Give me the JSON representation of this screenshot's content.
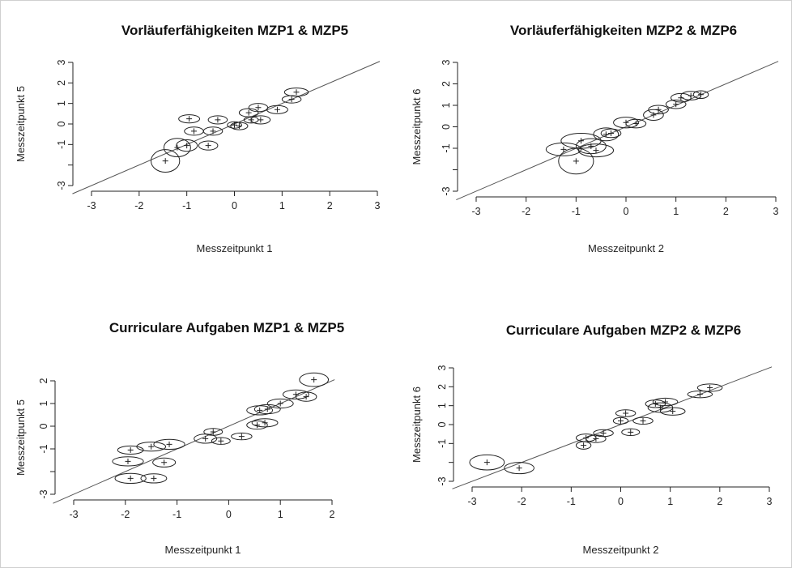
{
  "chart_data": [
    {
      "type": "scatter",
      "title": "Vorläuferfähigkeiten MZP1 & MZP5",
      "xlabel": "Messzeitpunkt 1",
      "ylabel": "Messzeitpunkt 5",
      "xlim": [
        -3,
        3
      ],
      "ylim": [
        -3,
        3
      ],
      "xticks": [
        "-3",
        "-2",
        "-1",
        "0",
        "1",
        "2",
        "3"
      ],
      "yticks": [
        "-3",
        "-1",
        "0",
        "1",
        "2",
        "3"
      ],
      "reference_line": "identity",
      "points": [
        {
          "x": -1.45,
          "y": -1.8,
          "rx": 0.3,
          "ry": 0.55
        },
        {
          "x": -1.2,
          "y": -1.15,
          "rx": 0.28,
          "ry": 0.45
        },
        {
          "x": -1.0,
          "y": -1.05,
          "rx": 0.22,
          "ry": 0.28
        },
        {
          "x": -0.95,
          "y": 0.25,
          "rx": 0.22,
          "ry": 0.2
        },
        {
          "x": -0.85,
          "y": -0.35,
          "rx": 0.2,
          "ry": 0.2
        },
        {
          "x": -0.55,
          "y": -1.05,
          "rx": 0.2,
          "ry": 0.22
        },
        {
          "x": -0.45,
          "y": -0.35,
          "rx": 0.2,
          "ry": 0.2
        },
        {
          "x": -0.35,
          "y": 0.2,
          "rx": 0.2,
          "ry": 0.2
        },
        {
          "x": 0.0,
          "y": -0.05,
          "rx": 0.15,
          "ry": 0.15
        },
        {
          "x": 0.1,
          "y": -0.1,
          "rx": 0.18,
          "ry": 0.18
        },
        {
          "x": 0.3,
          "y": 0.55,
          "rx": 0.2,
          "ry": 0.2
        },
        {
          "x": 0.35,
          "y": 0.2,
          "rx": 0.15,
          "ry": 0.15
        },
        {
          "x": 0.5,
          "y": 0.8,
          "rx": 0.2,
          "ry": 0.2
        },
        {
          "x": 0.55,
          "y": 0.2,
          "rx": 0.2,
          "ry": 0.2
        },
        {
          "x": 0.9,
          "y": 0.7,
          "rx": 0.22,
          "ry": 0.2
        },
        {
          "x": 1.2,
          "y": 1.2,
          "rx": 0.2,
          "ry": 0.18
        },
        {
          "x": 1.3,
          "y": 1.55,
          "rx": 0.25,
          "ry": 0.2
        }
      ]
    },
    {
      "type": "scatter",
      "title": "Vorläuferfähigkeiten MZP2 & MZP6",
      "xlabel": "Messzeitpunkt 2",
      "ylabel": "Messzeitpunkt 6",
      "xlim": [
        -3,
        3
      ],
      "ylim": [
        -3,
        3
      ],
      "xticks": [
        "-3",
        "-2",
        "-1",
        "0",
        "1",
        "2",
        "3"
      ],
      "yticks": [
        "-3",
        "-1",
        "0",
        "1",
        "2",
        "3"
      ],
      "reference_line": "identity",
      "points": [
        {
          "x": -1.25,
          "y": -1.05,
          "rx": 0.35,
          "ry": 0.3
        },
        {
          "x": -1.0,
          "y": -1.6,
          "rx": 0.35,
          "ry": 0.6
        },
        {
          "x": -0.9,
          "y": -0.65,
          "rx": 0.4,
          "ry": 0.35
        },
        {
          "x": -0.7,
          "y": -0.9,
          "rx": 0.3,
          "ry": 0.35
        },
        {
          "x": -0.6,
          "y": -1.1,
          "rx": 0.35,
          "ry": 0.3
        },
        {
          "x": -0.4,
          "y": -0.35,
          "rx": 0.25,
          "ry": 0.3
        },
        {
          "x": -0.3,
          "y": -0.3,
          "rx": 0.2,
          "ry": 0.2
        },
        {
          "x": 0.0,
          "y": 0.2,
          "rx": 0.25,
          "ry": 0.25
        },
        {
          "x": 0.2,
          "y": 0.15,
          "rx": 0.2,
          "ry": 0.2
        },
        {
          "x": 0.55,
          "y": 0.55,
          "rx": 0.2,
          "ry": 0.25
        },
        {
          "x": 0.65,
          "y": 0.8,
          "rx": 0.2,
          "ry": 0.2
        },
        {
          "x": 1.0,
          "y": 1.05,
          "rx": 0.2,
          "ry": 0.2
        },
        {
          "x": 1.1,
          "y": 1.35,
          "rx": 0.2,
          "ry": 0.2
        },
        {
          "x": 1.3,
          "y": 1.45,
          "rx": 0.2,
          "ry": 0.2
        },
        {
          "x": 1.5,
          "y": 1.5,
          "rx": 0.15,
          "ry": 0.18
        }
      ]
    },
    {
      "type": "scatter",
      "title": "Curriculare Aufgaben MZP1 & MZP5",
      "xlabel": "Messzeitpunkt 1",
      "ylabel": "Messzeitpunkt 5",
      "xlim": [
        -3,
        2
      ],
      "ylim": [
        -3,
        2
      ],
      "xticks": [
        "-3",
        "-2",
        "-1",
        "0",
        "1",
        "2"
      ],
      "yticks": [
        "-3",
        "-1",
        "0",
        "1",
        "2"
      ],
      "reference_line": "identity",
      "points": [
        {
          "x": -1.9,
          "y": -1.05,
          "rx": 0.25,
          "ry": 0.18
        },
        {
          "x": -1.95,
          "y": -1.55,
          "rx": 0.3,
          "ry": 0.2
        },
        {
          "x": -1.9,
          "y": -2.3,
          "rx": 0.3,
          "ry": 0.22
        },
        {
          "x": -1.45,
          "y": -2.3,
          "rx": 0.25,
          "ry": 0.2
        },
        {
          "x": -1.5,
          "y": -0.9,
          "rx": 0.28,
          "ry": 0.2
        },
        {
          "x": -1.25,
          "y": -1.6,
          "rx": 0.22,
          "ry": 0.2
        },
        {
          "x": -1.15,
          "y": -0.8,
          "rx": 0.3,
          "ry": 0.22
        },
        {
          "x": -0.45,
          "y": -0.55,
          "rx": 0.22,
          "ry": 0.2
        },
        {
          "x": -0.3,
          "y": -0.25,
          "rx": 0.18,
          "ry": 0.15
        },
        {
          "x": -0.15,
          "y": -0.65,
          "rx": 0.18,
          "ry": 0.15
        },
        {
          "x": 0.25,
          "y": -0.45,
          "rx": 0.2,
          "ry": 0.15
        },
        {
          "x": 0.55,
          "y": 0.05,
          "rx": 0.2,
          "ry": 0.18
        },
        {
          "x": 0.6,
          "y": 0.7,
          "rx": 0.25,
          "ry": 0.2
        },
        {
          "x": 0.75,
          "y": 0.75,
          "rx": 0.25,
          "ry": 0.2
        },
        {
          "x": 0.7,
          "y": 0.15,
          "rx": 0.25,
          "ry": 0.18
        },
        {
          "x": 1.0,
          "y": 1.0,
          "rx": 0.25,
          "ry": 0.2
        },
        {
          "x": 1.3,
          "y": 1.4,
          "rx": 0.25,
          "ry": 0.2
        },
        {
          "x": 1.5,
          "y": 1.3,
          "rx": 0.2,
          "ry": 0.2
        },
        {
          "x": 1.65,
          "y": 2.05,
          "rx": 0.28,
          "ry": 0.3
        }
      ]
    },
    {
      "type": "scatter",
      "title": "Curriculare Aufgaben MZP2 & MZP6",
      "xlabel": "Messzeitpunkt 2",
      "ylabel": "Messzeitpunkt 6",
      "xlim": [
        -3,
        3
      ],
      "ylim": [
        -3,
        3
      ],
      "xticks": [
        "-3",
        "-2",
        "-1",
        "0",
        "1",
        "2",
        "3"
      ],
      "yticks": [
        "-3",
        "-1",
        "0",
        "1",
        "2",
        "3"
      ],
      "reference_line": "identity",
      "points": [
        {
          "x": -2.7,
          "y": -2.0,
          "rx": 0.35,
          "ry": 0.4
        },
        {
          "x": -2.05,
          "y": -2.3,
          "rx": 0.3,
          "ry": 0.3
        },
        {
          "x": -0.75,
          "y": -1.1,
          "rx": 0.15,
          "ry": 0.2
        },
        {
          "x": -0.7,
          "y": -0.7,
          "rx": 0.2,
          "ry": 0.2
        },
        {
          "x": -0.5,
          "y": -0.75,
          "rx": 0.2,
          "ry": 0.2
        },
        {
          "x": -0.35,
          "y": -0.45,
          "rx": 0.2,
          "ry": 0.18
        },
        {
          "x": 0.0,
          "y": 0.2,
          "rx": 0.15,
          "ry": 0.15
        },
        {
          "x": 0.1,
          "y": 0.6,
          "rx": 0.2,
          "ry": 0.18
        },
        {
          "x": 0.2,
          "y": -0.4,
          "rx": 0.18,
          "ry": 0.18
        },
        {
          "x": 0.45,
          "y": 0.2,
          "rx": 0.2,
          "ry": 0.18
        },
        {
          "x": 0.7,
          "y": 1.1,
          "rx": 0.2,
          "ry": 0.2
        },
        {
          "x": 0.8,
          "y": 0.9,
          "rx": 0.25,
          "ry": 0.25
        },
        {
          "x": 0.9,
          "y": 1.2,
          "rx": 0.25,
          "ry": 0.2
        },
        {
          "x": 1.05,
          "y": 0.7,
          "rx": 0.25,
          "ry": 0.2
        },
        {
          "x": 1.6,
          "y": 1.6,
          "rx": 0.25,
          "ry": 0.18
        },
        {
          "x": 1.8,
          "y": 1.95,
          "rx": 0.25,
          "ry": 0.2
        }
      ]
    }
  ]
}
